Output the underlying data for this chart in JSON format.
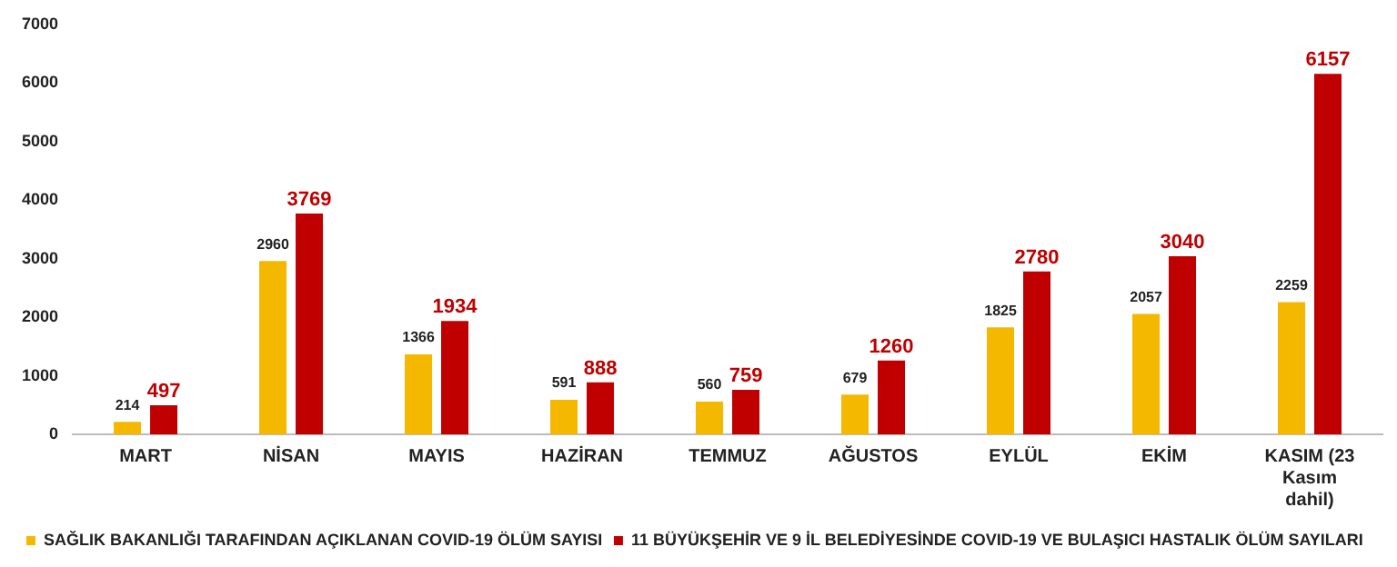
{
  "chart_data": {
    "type": "bar",
    "categories": [
      "MART",
      "NİSAN",
      "MAYIS",
      "HAZİRAN",
      "TEMMUZ",
      "AĞUSTOS",
      "EYLÜL",
      "EKİM",
      "KASIM (23 Kasım dahil)"
    ],
    "series": [
      {
        "name": "SAĞLIK BAKANLIĞI TARAFINDAN AÇIKLANAN COVID-19 ÖLÜM SAYISI",
        "color": "#f5b800",
        "values": [
          214,
          2960,
          1366,
          591,
          560,
          679,
          1825,
          2057,
          2259
        ]
      },
      {
        "name": "11 BÜYÜKŞEHİR VE 9 İL BELEDİYESİNDE COVID-19 VE BULAŞICI HASTALIK ÖLÜM SAYILARI",
        "color": "#c00000",
        "values": [
          497,
          3769,
          1934,
          888,
          759,
          1260,
          2780,
          3040,
          6157
        ]
      }
    ],
    "ylim": [
      0,
      7000
    ],
    "yticks": [
      0,
      1000,
      2000,
      3000,
      4000,
      5000,
      6000,
      7000
    ],
    "grid": false,
    "legend": "bottom",
    "data_labels": true
  }
}
